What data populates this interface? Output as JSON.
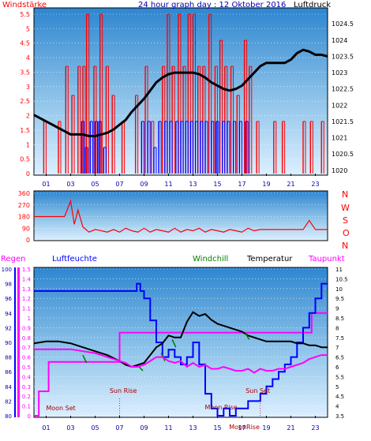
{
  "chart_data": [
    {
      "type": "line",
      "title": "24 hour graph day : 12 Oktober 2016",
      "ylabel_left": "Windstärke",
      "ylabel_right": "Luftdruck",
      "left_ticks": [
        "0",
        "0.5",
        "1",
        "1.5",
        "2",
        "2.5",
        "3",
        "3.5",
        "4",
        "4.5",
        "5",
        "5.5"
      ],
      "right_ticks": [
        "1020",
        "1020.5",
        "1021",
        "1021.5",
        "1022",
        "1022.5",
        "1023",
        "1023.5",
        "1024",
        "1024.5"
      ],
      "x_ticks": [
        "01",
        "03",
        "05",
        "07",
        "09",
        "11",
        "13",
        "15",
        "17",
        "19",
        "21",
        "23"
      ],
      "ylim_left": [
        0,
        5.5
      ],
      "ylim_right": [
        1019.8,
        1024.7
      ],
      "series": [
        {
          "name": "Luftdruck",
          "axis": "right",
          "color": "#000000",
          "x": [
            0,
            0.5,
            1,
            1.5,
            2,
            2.5,
            3,
            3.5,
            4,
            4.5,
            5,
            5.5,
            6,
            6.5,
            7,
            7.5,
            8,
            8.5,
            9,
            9.5,
            10,
            10.5,
            11,
            11.5,
            12,
            12.5,
            13,
            13.5,
            14,
            14.5,
            15,
            15.5,
            16,
            16.5,
            17,
            17.5,
            18,
            18.5,
            19,
            19.5,
            20,
            20.5,
            21,
            21.5,
            22,
            22.5,
            23,
            23.5,
            24
          ],
          "y": [
            1021.7,
            1021.6,
            1021.5,
            1021.4,
            1021.3,
            1021.2,
            1021.1,
            1021.1,
            1021.1,
            1021.05,
            1021.05,
            1021.1,
            1021.15,
            1021.25,
            1021.4,
            1021.55,
            1021.8,
            1022.0,
            1022.2,
            1022.45,
            1022.7,
            1022.85,
            1022.95,
            1023.0,
            1023.0,
            1023.0,
            1023.0,
            1022.95,
            1022.85,
            1022.7,
            1022.6,
            1022.5,
            1022.45,
            1022.5,
            1022.6,
            1022.8,
            1023.0,
            1023.2,
            1023.3,
            1023.3,
            1023.3,
            1023.3,
            1023.4,
            1023.6,
            1023.7,
            1023.65,
            1023.55,
            1023.55,
            1023.5
          ]
        },
        {
          "name": "Windstärke Böen",
          "axis": "left",
          "color": "#ff0000",
          "style": "bars",
          "x": [
            0.8,
            2.0,
            2.6,
            3.1,
            3.6,
            4.0,
            4.3,
            4.9,
            5.4,
            5.9,
            6.4,
            7.2,
            8.3,
            9.1,
            9.6,
            10.5,
            10.9,
            11.3,
            11.8,
            12.2,
            12.6,
            13.0,
            13.4,
            13.8,
            14.3,
            14.8,
            15.2,
            15.6,
            16.1,
            16.6,
            17.2,
            17.6,
            18.2,
            19.6,
            20.3,
            22.0,
            22.6,
            23.5
          ],
          "y": [
            1.8,
            1.8,
            3.7,
            2.7,
            3.7,
            3.7,
            5.5,
            3.7,
            5.5,
            3.7,
            2.7,
            1.8,
            2.7,
            3.7,
            1.8,
            3.7,
            5.5,
            3.7,
            5.5,
            3.7,
            5.5,
            5.5,
            3.7,
            3.7,
            5.5,
            3.7,
            4.6,
            3.7,
            3.7,
            2.7,
            4.6,
            3.7,
            1.8,
            1.8,
            1.8,
            1.8,
            1.8,
            1.8
          ]
        },
        {
          "name": "Windstärke Mittel",
          "axis": "left",
          "color": "#0000ff",
          "style": "bars",
          "x": [
            3.9,
            4.2,
            4.6,
            5.0,
            5.3,
            5.7,
            8.8,
            9.3,
            9.8,
            10.2,
            10.7,
            11.1,
            11.6,
            12.0,
            12.4,
            12.8,
            13.2,
            13.6,
            14.0,
            14.5,
            14.9,
            15.4,
            15.8,
            16.3,
            16.8,
            17.3
          ],
          "y": [
            1.8,
            0.9,
            1.8,
            1.8,
            1.8,
            0.9,
            1.8,
            1.8,
            0.9,
            1.8,
            1.8,
            1.8,
            1.8,
            1.8,
            1.8,
            1.8,
            1.8,
            1.8,
            1.8,
            1.8,
            1.8,
            1.8,
            1.8,
            1.8,
            1.8,
            1.8
          ]
        }
      ]
    },
    {
      "type": "line",
      "ylabel_right": [
        "N",
        "W",
        "S",
        "O",
        "N"
      ],
      "left_ticks": [
        "360",
        "270",
        "180",
        "90",
        "0"
      ],
      "x_ticks": [
        "01",
        "03",
        "05",
        "07",
        "09",
        "11",
        "13",
        "15",
        "17",
        "19",
        "21",
        "23"
      ],
      "ylim": [
        0,
        360
      ],
      "series": [
        {
          "name": "Windrichtung",
          "color": "#ff0000",
          "x": [
            0,
            1,
            1.5,
            2,
            2.5,
            3,
            3.3,
            3.6,
            4,
            4.5,
            5,
            5.5,
            6,
            6.5,
            7,
            7.5,
            8,
            8.5,
            9,
            9.5,
            10,
            10.5,
            11,
            11.5,
            12,
            12.5,
            13,
            13.5,
            14,
            14.5,
            15,
            15.5,
            16,
            16.5,
            17,
            17.5,
            18,
            18.5,
            19,
            20,
            21,
            22,
            22.5,
            23,
            23.5,
            24
          ],
          "y": [
            180,
            180,
            180,
            180,
            180,
            300,
            120,
            230,
            100,
            60,
            80,
            70,
            60,
            80,
            60,
            90,
            70,
            60,
            90,
            60,
            80,
            70,
            60,
            90,
            60,
            80,
            70,
            90,
            60,
            80,
            70,
            60,
            80,
            70,
            60,
            90,
            70,
            80,
            80,
            80,
            80,
            80,
            150,
            80,
            80,
            80
          ]
        }
      ]
    },
    {
      "type": "line",
      "legend": [
        "Regen",
        "Luftfeuchte",
        "Windchill",
        "Temperatur",
        "Taupunkt"
      ],
      "rain_ticks": [
        "0",
        "0.1",
        "0.2",
        "0.3",
        "0.4",
        "0.5",
        "0.6",
        "0.7",
        "0.8",
        "0.9",
        "1",
        "1.1",
        "1.2",
        "1.3",
        "1.4",
        "1.5"
      ],
      "humidity_ticks": [
        "80",
        "82",
        "84",
        "86",
        "88",
        "90",
        "92",
        "94",
        "96",
        "98",
        "100"
      ],
      "temp_ticks": [
        "3.5",
        "4",
        "4.5",
        "5",
        "5.5",
        "6",
        "6.5",
        "7",
        "7.5",
        "8",
        "8.5",
        "9",
        "9.5",
        "10",
        "10.5",
        "11"
      ],
      "x_ticks": [
        "01",
        "03",
        "05",
        "07",
        "09",
        "11",
        "13",
        "15",
        "17",
        "19",
        "21",
        "23"
      ],
      "annotations": [
        {
          "label": "Moon Set",
          "x": 2.2
        },
        {
          "label": "Sun Rise",
          "x": 7.3
        },
        {
          "label": "Moon Rise",
          "x": 15.3
        },
        {
          "label": "Sun Set",
          "x": 18.3
        },
        {
          "label": "MoonRise",
          "x": 17.2
        }
      ],
      "series": [
        {
          "name": "Regen",
          "axis": "rain",
          "color": "#ff00ff",
          "x": [
            0,
            0.3,
            0.4,
            1.1,
            1.2,
            6.9,
            7.0,
            22.6,
            22.7,
            23.9,
            24
          ],
          "y": [
            0,
            0,
            0.25,
            0.25,
            0.55,
            0.55,
            0.85,
            0.85,
            1.05,
            1.05,
            1.05
          ]
        },
        {
          "name": "Luftfeuchte",
          "axis": "humidity",
          "color": "#0000ff",
          "x": [
            0,
            1,
            2,
            3,
            4,
            5,
            6,
            7,
            8,
            8.4,
            8.7,
            9,
            9.5,
            10,
            10.5,
            11,
            11.5,
            12,
            12.5,
            13,
            13.5,
            14,
            14.5,
            15,
            15.5,
            16,
            16.5,
            17,
            17.5,
            18,
            18.5,
            19,
            19.5,
            20,
            20.5,
            21,
            21.5,
            22,
            22.5,
            23,
            23.5,
            24
          ],
          "y": [
            97,
            97,
            97,
            97,
            97,
            97,
            97,
            97,
            97,
            98,
            97,
            96,
            93,
            90,
            88,
            89,
            88,
            87,
            88,
            90,
            87,
            83,
            81,
            80,
            81,
            80,
            81,
            81,
            82,
            82,
            83,
            84,
            85,
            86,
            87,
            88,
            90,
            92,
            94,
            96,
            98,
            98
          ]
        },
        {
          "name": "Temperatur",
          "axis": "temp",
          "color": "#000000",
          "x": [
            0,
            1,
            2,
            3,
            4,
            5,
            6,
            7,
            7.5,
            8,
            8.5,
            9,
            9.5,
            10,
            10.5,
            11,
            11.5,
            12,
            12.5,
            13,
            13.5,
            14,
            14.5,
            15,
            15.5,
            16,
            16.5,
            17,
            17.5,
            18,
            18.5,
            19,
            19.5,
            20,
            20.5,
            21,
            21.5,
            22,
            22.5,
            23,
            23.5,
            24
          ],
          "y": [
            7.2,
            7.3,
            7.3,
            7.2,
            7.0,
            6.8,
            6.6,
            6.3,
            6.1,
            6.0,
            6.1,
            6.2,
            6.6,
            7.0,
            7.2,
            7.6,
            7.5,
            7.5,
            8.3,
            8.8,
            8.6,
            8.7,
            8.4,
            8.2,
            8.1,
            8.0,
            7.9,
            7.8,
            7.6,
            7.5,
            7.4,
            7.3,
            7.3,
            7.3,
            7.3,
            7.3,
            7.2,
            7.2,
            7.1,
            7.1,
            7.0,
            7.0
          ]
        },
        {
          "name": "Windchill",
          "axis": "temp",
          "color": "#008000",
          "x": [
            4.0,
            4.3,
            8.6,
            8.9,
            10.4,
            10.7,
            11.3,
            11.6,
            17.3,
            17.6
          ],
          "y": [
            6.6,
            6.2,
            6.0,
            5.8,
            6.7,
            6.3,
            7.4,
            7.0,
            7.7,
            7.4
          ]
        },
        {
          "name": "Taupunkt",
          "axis": "temp",
          "color": "#ff00ff",
          "x": [
            0,
            1,
            2,
            3,
            4,
            5,
            6,
            7,
            7.5,
            8,
            8.5,
            9,
            9.5,
            10,
            10.5,
            11,
            11.5,
            12,
            12.5,
            13,
            13.5,
            14,
            14.5,
            15,
            15.5,
            16,
            16.5,
            17,
            17.5,
            18,
            18.5,
            19,
            19.5,
            20,
            20.5,
            21,
            21.5,
            22,
            22.5,
            23,
            23.5,
            24
          ],
          "y": [
            6.9,
            6.9,
            6.9,
            6.9,
            6.8,
            6.7,
            6.5,
            6.3,
            6.2,
            6.0,
            6.0,
            6.1,
            6.3,
            6.5,
            6.5,
            6.3,
            6.2,
            6.3,
            6.0,
            6.2,
            6.0,
            6.1,
            5.9,
            5.9,
            6.0,
            5.9,
            5.8,
            5.8,
            5.9,
            5.7,
            5.9,
            5.8,
            5.8,
            5.9,
            5.9,
            6.0,
            6.1,
            6.2,
            6.4,
            6.5,
            6.6,
            6.6
          ]
        }
      ]
    }
  ]
}
